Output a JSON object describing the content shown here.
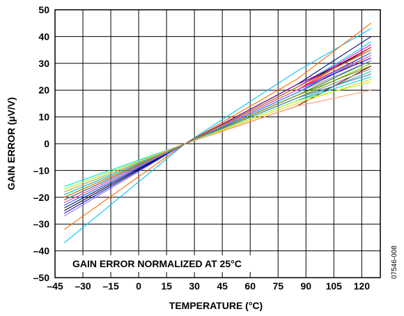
{
  "chart_data": {
    "type": "line",
    "title": "",
    "annotation": "GAIN ERROR NORMALIZED AT 25°C",
    "figure_id": "07546-008",
    "xlabel": "TEMPERATURE (°C)",
    "ylabel": "GAIN ERROR (µV/V)",
    "xlim": [
      -45,
      130
    ],
    "ylim": [
      -50,
      50
    ],
    "grid": true,
    "x_ticks": [
      -45,
      -30,
      -15,
      0,
      15,
      30,
      45,
      60,
      75,
      90,
      105,
      120
    ],
    "x_tick_labels": [
      "–45",
      "–30",
      "–15",
      "0",
      "15",
      "30",
      "45",
      "60",
      "75",
      "90",
      "105",
      "120"
    ],
    "y_ticks": [
      50,
      40,
      30,
      20,
      10,
      0,
      -10,
      -20,
      -30,
      -40,
      -50
    ],
    "y_tick_labels": [
      "50",
      "40",
      "30",
      "20",
      "10",
      "0",
      "–10",
      "–20",
      "–30",
      "–40",
      "–50"
    ],
    "x": [
      -40,
      25,
      85,
      125
    ],
    "series": [
      {
        "color": "#00bfff",
        "values": [
          -37,
          0,
          27,
          43
        ]
      },
      {
        "color": "#ff6600",
        "values": [
          -32,
          0,
          24,
          45
        ]
      },
      {
        "color": "#00e0e0",
        "values": [
          -16,
          0,
          21,
          38
        ]
      },
      {
        "color": "#000080",
        "values": [
          -24,
          0,
          22,
          40
        ]
      },
      {
        "color": "#000000",
        "values": [
          -25,
          0,
          21,
          36
        ]
      },
      {
        "color": "#ff00ff",
        "values": [
          -22,
          0,
          21,
          37
        ]
      },
      {
        "color": "#ff0000",
        "values": [
          -21,
          0,
          20,
          36
        ]
      },
      {
        "color": "#800080",
        "values": [
          -23,
          0,
          22,
          35
        ]
      },
      {
        "color": "#cc0066",
        "values": [
          -20,
          0,
          20,
          34
        ]
      },
      {
        "color": "#8b4513",
        "values": [
          -21,
          0,
          19,
          33
        ]
      },
      {
        "color": "#0000ff",
        "values": [
          -26,
          0,
          20,
          32
        ]
      },
      {
        "color": "#008000",
        "values": [
          -18,
          0,
          18,
          31
        ]
      },
      {
        "color": "#66cc00",
        "values": [
          -17,
          0,
          17,
          30
        ]
      },
      {
        "color": "#808000",
        "values": [
          -19,
          0,
          18,
          29
        ]
      },
      {
        "color": "#800000",
        "values": [
          -22,
          0,
          14,
          29
        ]
      },
      {
        "color": "#808080",
        "values": [
          -20,
          0,
          17,
          28
        ]
      },
      {
        "color": "#9370db",
        "values": [
          -27,
          0,
          19,
          31
        ]
      },
      {
        "color": "#20b2aa",
        "values": [
          -18,
          0,
          16,
          27
        ]
      },
      {
        "color": "#4682b4",
        "values": [
          -21,
          0,
          17,
          26
        ]
      },
      {
        "color": "#00ced1",
        "values": [
          -19,
          0,
          16,
          25
        ]
      },
      {
        "color": "#ffcc00",
        "values": [
          -20,
          0,
          15,
          24
        ]
      },
      {
        "color": "#adff2f",
        "values": [
          -17,
          0,
          16,
          23
        ]
      },
      {
        "color": "#ffa07a",
        "values": [
          -18,
          0,
          14,
          20
        ]
      },
      {
        "color": "#ff69b4",
        "values": [
          -22,
          0,
          20,
          33
        ]
      },
      {
        "color": "#1e90ff",
        "values": [
          -23,
          0,
          19,
          34
        ]
      },
      {
        "color": "#b8860b",
        "values": [
          -20,
          0,
          21,
          35
        ]
      }
    ]
  }
}
